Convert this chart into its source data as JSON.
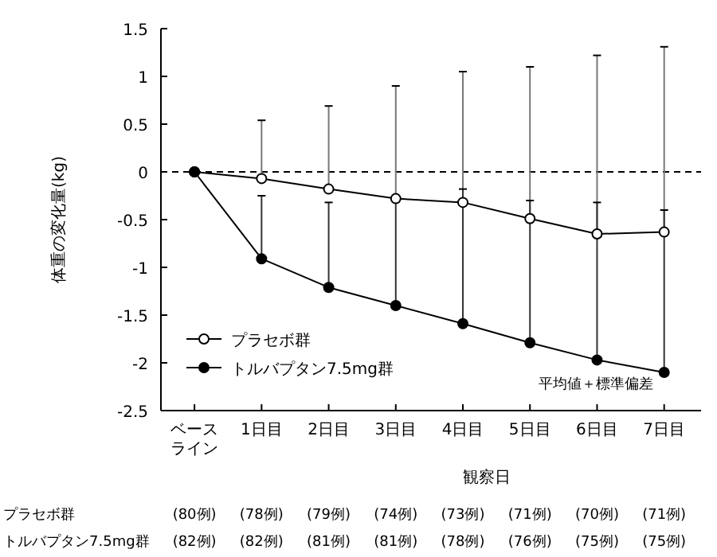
{
  "chart_data": {
    "type": "line",
    "ylabel": "体重の変化量(kg)",
    "xlabel": "観察日",
    "categories": [
      "ベースライン",
      "1日目",
      "2日目",
      "3日目",
      "4日目",
      "5日目",
      "6日目",
      "7日目"
    ],
    "series": [
      {
        "name": "プラセボ群",
        "color": "#ffffff",
        "values": [
          0,
          -0.07,
          -0.18,
          -0.28,
          -0.32,
          -0.49,
          -0.65,
          -0.63
        ],
        "errors": [
          null,
          [
            -0.07,
            0.54
          ],
          [
            -0.18,
            0.69
          ],
          [
            -0.28,
            0.9
          ],
          [
            -0.32,
            1.05
          ],
          [
            -0.49,
            1.1
          ],
          [
            -0.65,
            1.22
          ],
          [
            -0.63,
            1.31
          ]
        ]
      },
      {
        "name": "トルバプタン7.5mg群",
        "color": "#000000",
        "values": [
          0,
          -0.91,
          -1.21,
          -1.4,
          -1.59,
          -1.79,
          -1.97,
          -2.1
        ],
        "errors": [
          null,
          [
            -0.91,
            -0.25
          ],
          [
            -1.21,
            -0.32
          ],
          [
            -1.4,
            -0.27
          ],
          [
            -1.59,
            -0.18
          ],
          [
            -1.79,
            -0.3
          ],
          [
            -1.97,
            -0.32
          ],
          [
            -2.1,
            -0.4
          ]
        ]
      }
    ],
    "ylim": [
      -2.5,
      1.5
    ],
    "yticks": [
      -2.5,
      -2,
      -1.5,
      -1,
      -0.5,
      0,
      0.5,
      1,
      1.5
    ],
    "ref_lines": [
      {
        "axis": "y",
        "value": 0,
        "line_style": "dashed",
        "color": "#000000"
      }
    ],
    "marker": "circle",
    "line_style": "solid",
    "grid": false,
    "legend": "bottom left",
    "annotations": [
      "平均値＋標準偏差",
      "プラセボ群",
      "(80例)",
      "(78例)",
      "(79例)",
      "(74例)",
      "(73例)",
      "(71例)",
      "(70例)",
      "(71例)",
      "トルバプタン7.5mg群",
      "(82例)",
      "(82例)",
      "(81例)",
      "(81例)",
      "(78例)",
      "(76例)",
      "(75例)",
      "(75例)"
    ]
  }
}
